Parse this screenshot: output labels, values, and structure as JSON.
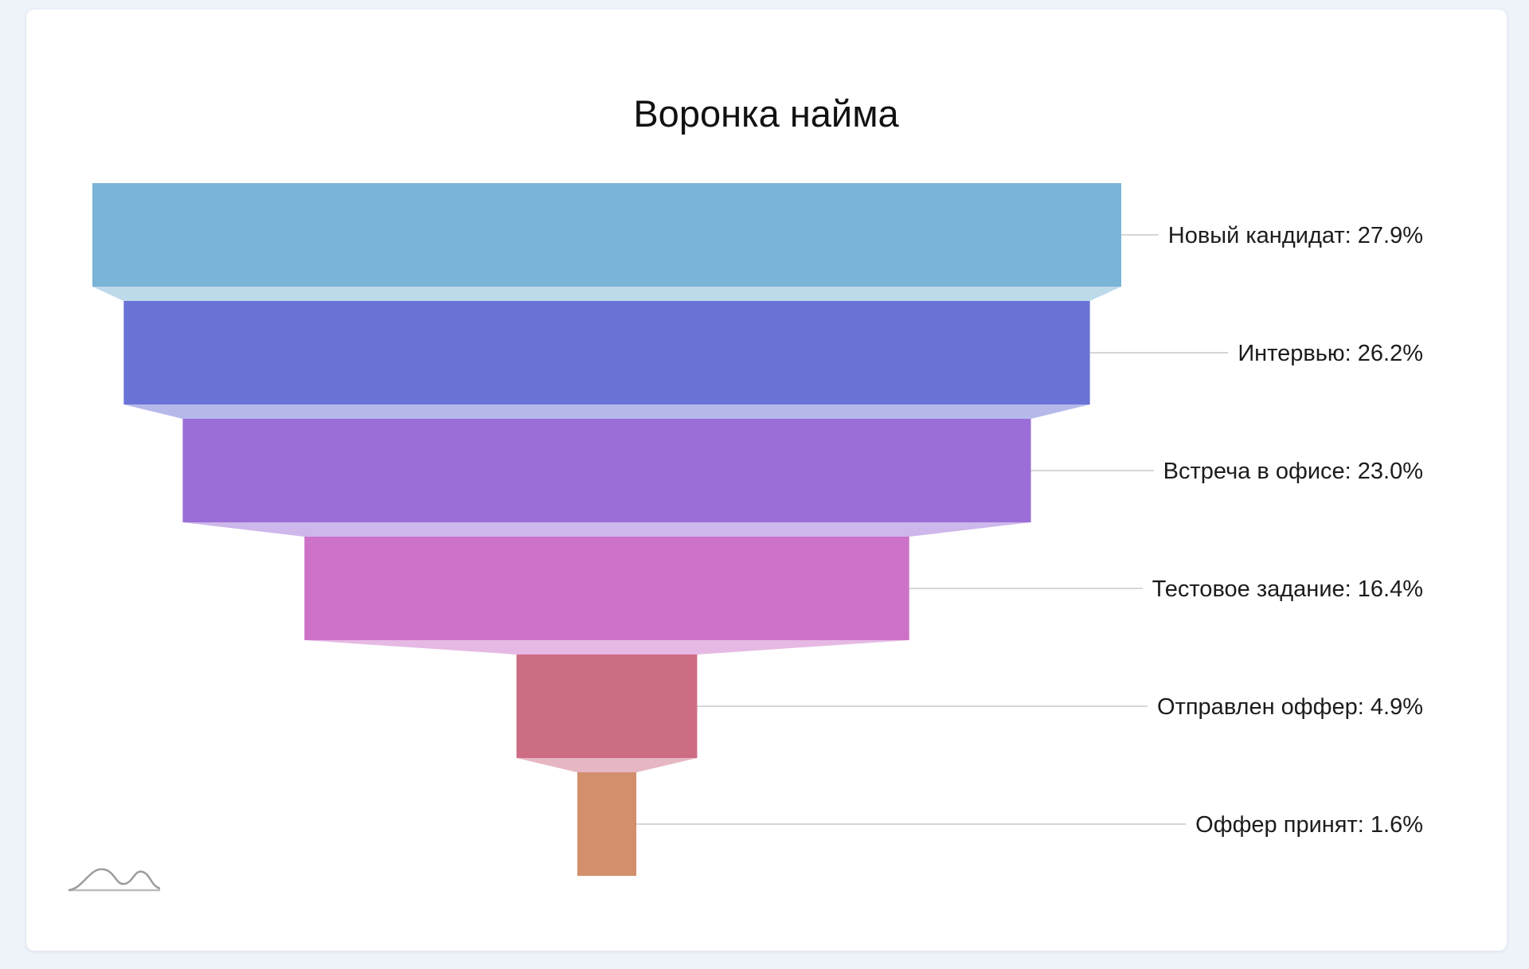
{
  "chart_data": {
    "type": "funnel",
    "title": "Воронка найма",
    "stages": [
      {
        "name": "Новый кандидат",
        "value": 27.9,
        "label": "Новый кандидат: 27.9%",
        "color": "#7ab4d7"
      },
      {
        "name": "Интервью",
        "value": 26.2,
        "label": "Интервью: 26.2%",
        "color": "#6a73d5"
      },
      {
        "name": "Встреча в офисе",
        "value": 23.0,
        "label": "Встреча в офисе: 23.0%",
        "color": "#9a6ed6"
      },
      {
        "name": "Тестовое задание",
        "value": 16.4,
        "label": "Тестовое задание: 16.4%",
        "color": "#cd72c8"
      },
      {
        "name": "Отправлен оффер",
        "value": 4.9,
        "label": "Отправлен оффер: 4.9%",
        "color": "#cd6d84"
      },
      {
        "name": "Оффер принят",
        "value": 1.6,
        "label": "Оффер принят: 1.6%",
        "color": "#d38f6c"
      }
    ],
    "unit": "%",
    "legend": "none",
    "grid": false
  },
  "logo": {
    "icon": "chart-logo-icon"
  }
}
